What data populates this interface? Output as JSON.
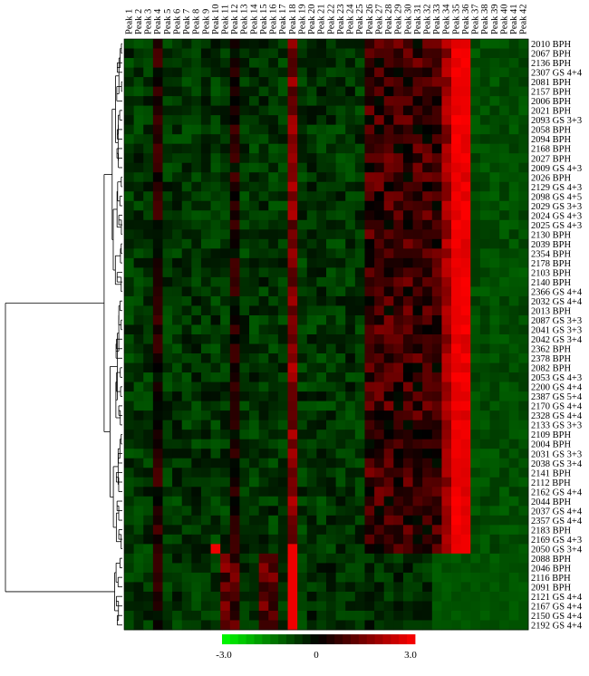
{
  "chart_data": {
    "type": "heatmap",
    "columns": [
      "Peak 1",
      "Peak 2",
      "Peak 3",
      "Peak 4",
      "Peak 5",
      "Peak 6",
      "Peak 7",
      "Peak 8",
      "Peak 9",
      "Peak 10",
      "Peak 11",
      "Peak 12",
      "Peak 13",
      "Peak 14",
      "Peak 15",
      "Peak 16",
      "Peak 17",
      "Peak 18",
      "Peak 19",
      "Peak 20",
      "Peak 21",
      "Peak 22",
      "Peak 23",
      "Peak 24",
      "Peak 25",
      "Peak 26",
      "Peak 27",
      "Peak 28",
      "Peak 29",
      "Peak 30",
      "Peak 31",
      "Peak 32",
      "Peak 33",
      "Peak 34",
      "Peak 35",
      "Peak 36",
      "Peak 37",
      "Peak 38",
      "Peak 39",
      "Peak 40",
      "Peak 41",
      "Peak 42"
    ],
    "rows": [
      "2010 BPH",
      "2067 BPH",
      "2136 BPH",
      "2307 GS 4+4",
      "2081 BPH",
      "2157 BPH",
      "2006 BPH",
      "2021 BPH",
      "2093 GS 3+3",
      "2058 BPH",
      "2094 BPH",
      "2168 BPH",
      "2027 BPH",
      "2009 GS 4+3",
      "2026 BPH",
      "2129 GS 4+3",
      "2098 GS 4+5",
      "2029 GS 3+3",
      "2024 GS 4+3",
      "2025 GS 4+3",
      "2130 BPH",
      "2039 BPH",
      "2354 BPH",
      "2178 BPH",
      "2103 BPH",
      "2140 BPH",
      "2366 GS 4+4",
      "2032 GS 4+4",
      "2013 BPH",
      "2087 GS 3+3",
      "2041 GS 3+3",
      "2042 GS 3+4",
      "2362 BPH",
      "2378 BPH",
      "2082 BPH",
      "2053 GS 4+3",
      "2200 GS 4+4",
      "2387 GS 5+4",
      "2170 GS 4+4",
      "2328 GS 4+4",
      "2133 GS 3+3",
      "2109 BPH",
      "2004 BPH",
      "2031 GS 3+3",
      "2038 GS 3+4",
      "2141 BPH",
      "2112 BPH",
      "2162 GS 4+4",
      "2044 BPH",
      "2037 GS 4+4",
      "2357 GS 4+4",
      "2183 BPH",
      "2169 GS 4+3",
      "2050 GS 3+4",
      "2088 BPH",
      "2046 BPH",
      "2116 BPH",
      "2091 BPH",
      "2121 GS 4+4",
      "2167 GS 4+4",
      "2150 GS 4+4",
      "2192 GS 4+4"
    ],
    "scale": {
      "min": -3.0,
      "mid": 0,
      "max": 3.0,
      "labels": [
        "-3.0",
        "0",
        "3.0"
      ]
    },
    "colors": {
      "low": "#00ff00",
      "mid": "#000000",
      "high": "#ff0000"
    }
  }
}
